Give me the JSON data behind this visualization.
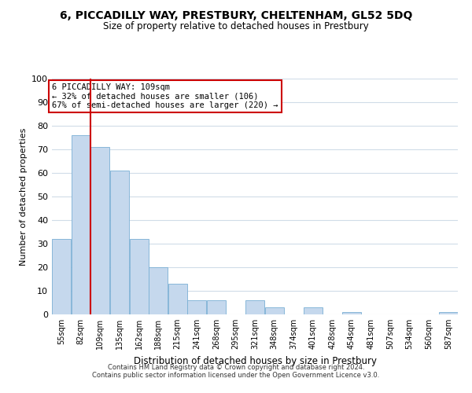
{
  "title": "6, PICCADILLY WAY, PRESTBURY, CHELTENHAM, GL52 5DQ",
  "subtitle": "Size of property relative to detached houses in Prestbury",
  "xlabel": "Distribution of detached houses by size in Prestbury",
  "ylabel": "Number of detached properties",
  "bar_color": "#c5d8ed",
  "bar_edge_color": "#7aafd4",
  "categories": [
    "55sqm",
    "82sqm",
    "109sqm",
    "135sqm",
    "162sqm",
    "188sqm",
    "215sqm",
    "241sqm",
    "268sqm",
    "295sqm",
    "321sqm",
    "348sqm",
    "374sqm",
    "401sqm",
    "428sqm",
    "454sqm",
    "481sqm",
    "507sqm",
    "534sqm",
    "560sqm",
    "587sqm"
  ],
  "values": [
    32,
    76,
    71,
    61,
    32,
    20,
    13,
    6,
    6,
    0,
    6,
    3,
    0,
    3,
    0,
    1,
    0,
    0,
    0,
    0,
    1
  ],
  "ylim": [
    0,
    100
  ],
  "yticks": [
    0,
    10,
    20,
    30,
    40,
    50,
    60,
    70,
    80,
    90,
    100
  ],
  "marker_index": 2,
  "marker_line_color": "#cc0000",
  "annotation_line1": "6 PICCADILLY WAY: 109sqm",
  "annotation_line2": "← 32% of detached houses are smaller (106)",
  "annotation_line3": "67% of semi-detached houses are larger (220) →",
  "annotation_box_color": "#cc0000",
  "footer1": "Contains HM Land Registry data © Crown copyright and database right 2024.",
  "footer2": "Contains public sector information licensed under the Open Government Licence v3.0.",
  "background_color": "#ffffff",
  "grid_color": "#d0dce8"
}
